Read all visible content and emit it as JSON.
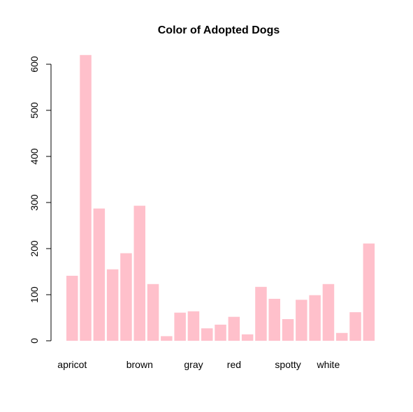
{
  "chart_data": {
    "type": "bar",
    "title": "Color of Adopted Dogs",
    "xlabel": "",
    "ylabel": "",
    "ylim": [
      0,
      620
    ],
    "y_ticks": [
      0,
      100,
      200,
      300,
      400,
      500,
      600
    ],
    "bar_color": "#FFC0CB",
    "grid": false,
    "legend": false,
    "category_labels": [
      "apricot",
      "brown",
      "gray",
      "red",
      "spotty",
      "white"
    ],
    "category_label_bar_index": [
      0,
      5,
      9,
      12,
      16,
      19
    ],
    "values": [
      141,
      620,
      287,
      155,
      190,
      293,
      123,
      10,
      61,
      64,
      27,
      35,
      52,
      14,
      117,
      91,
      47,
      89,
      99,
      123,
      17,
      62,
      211
    ]
  }
}
